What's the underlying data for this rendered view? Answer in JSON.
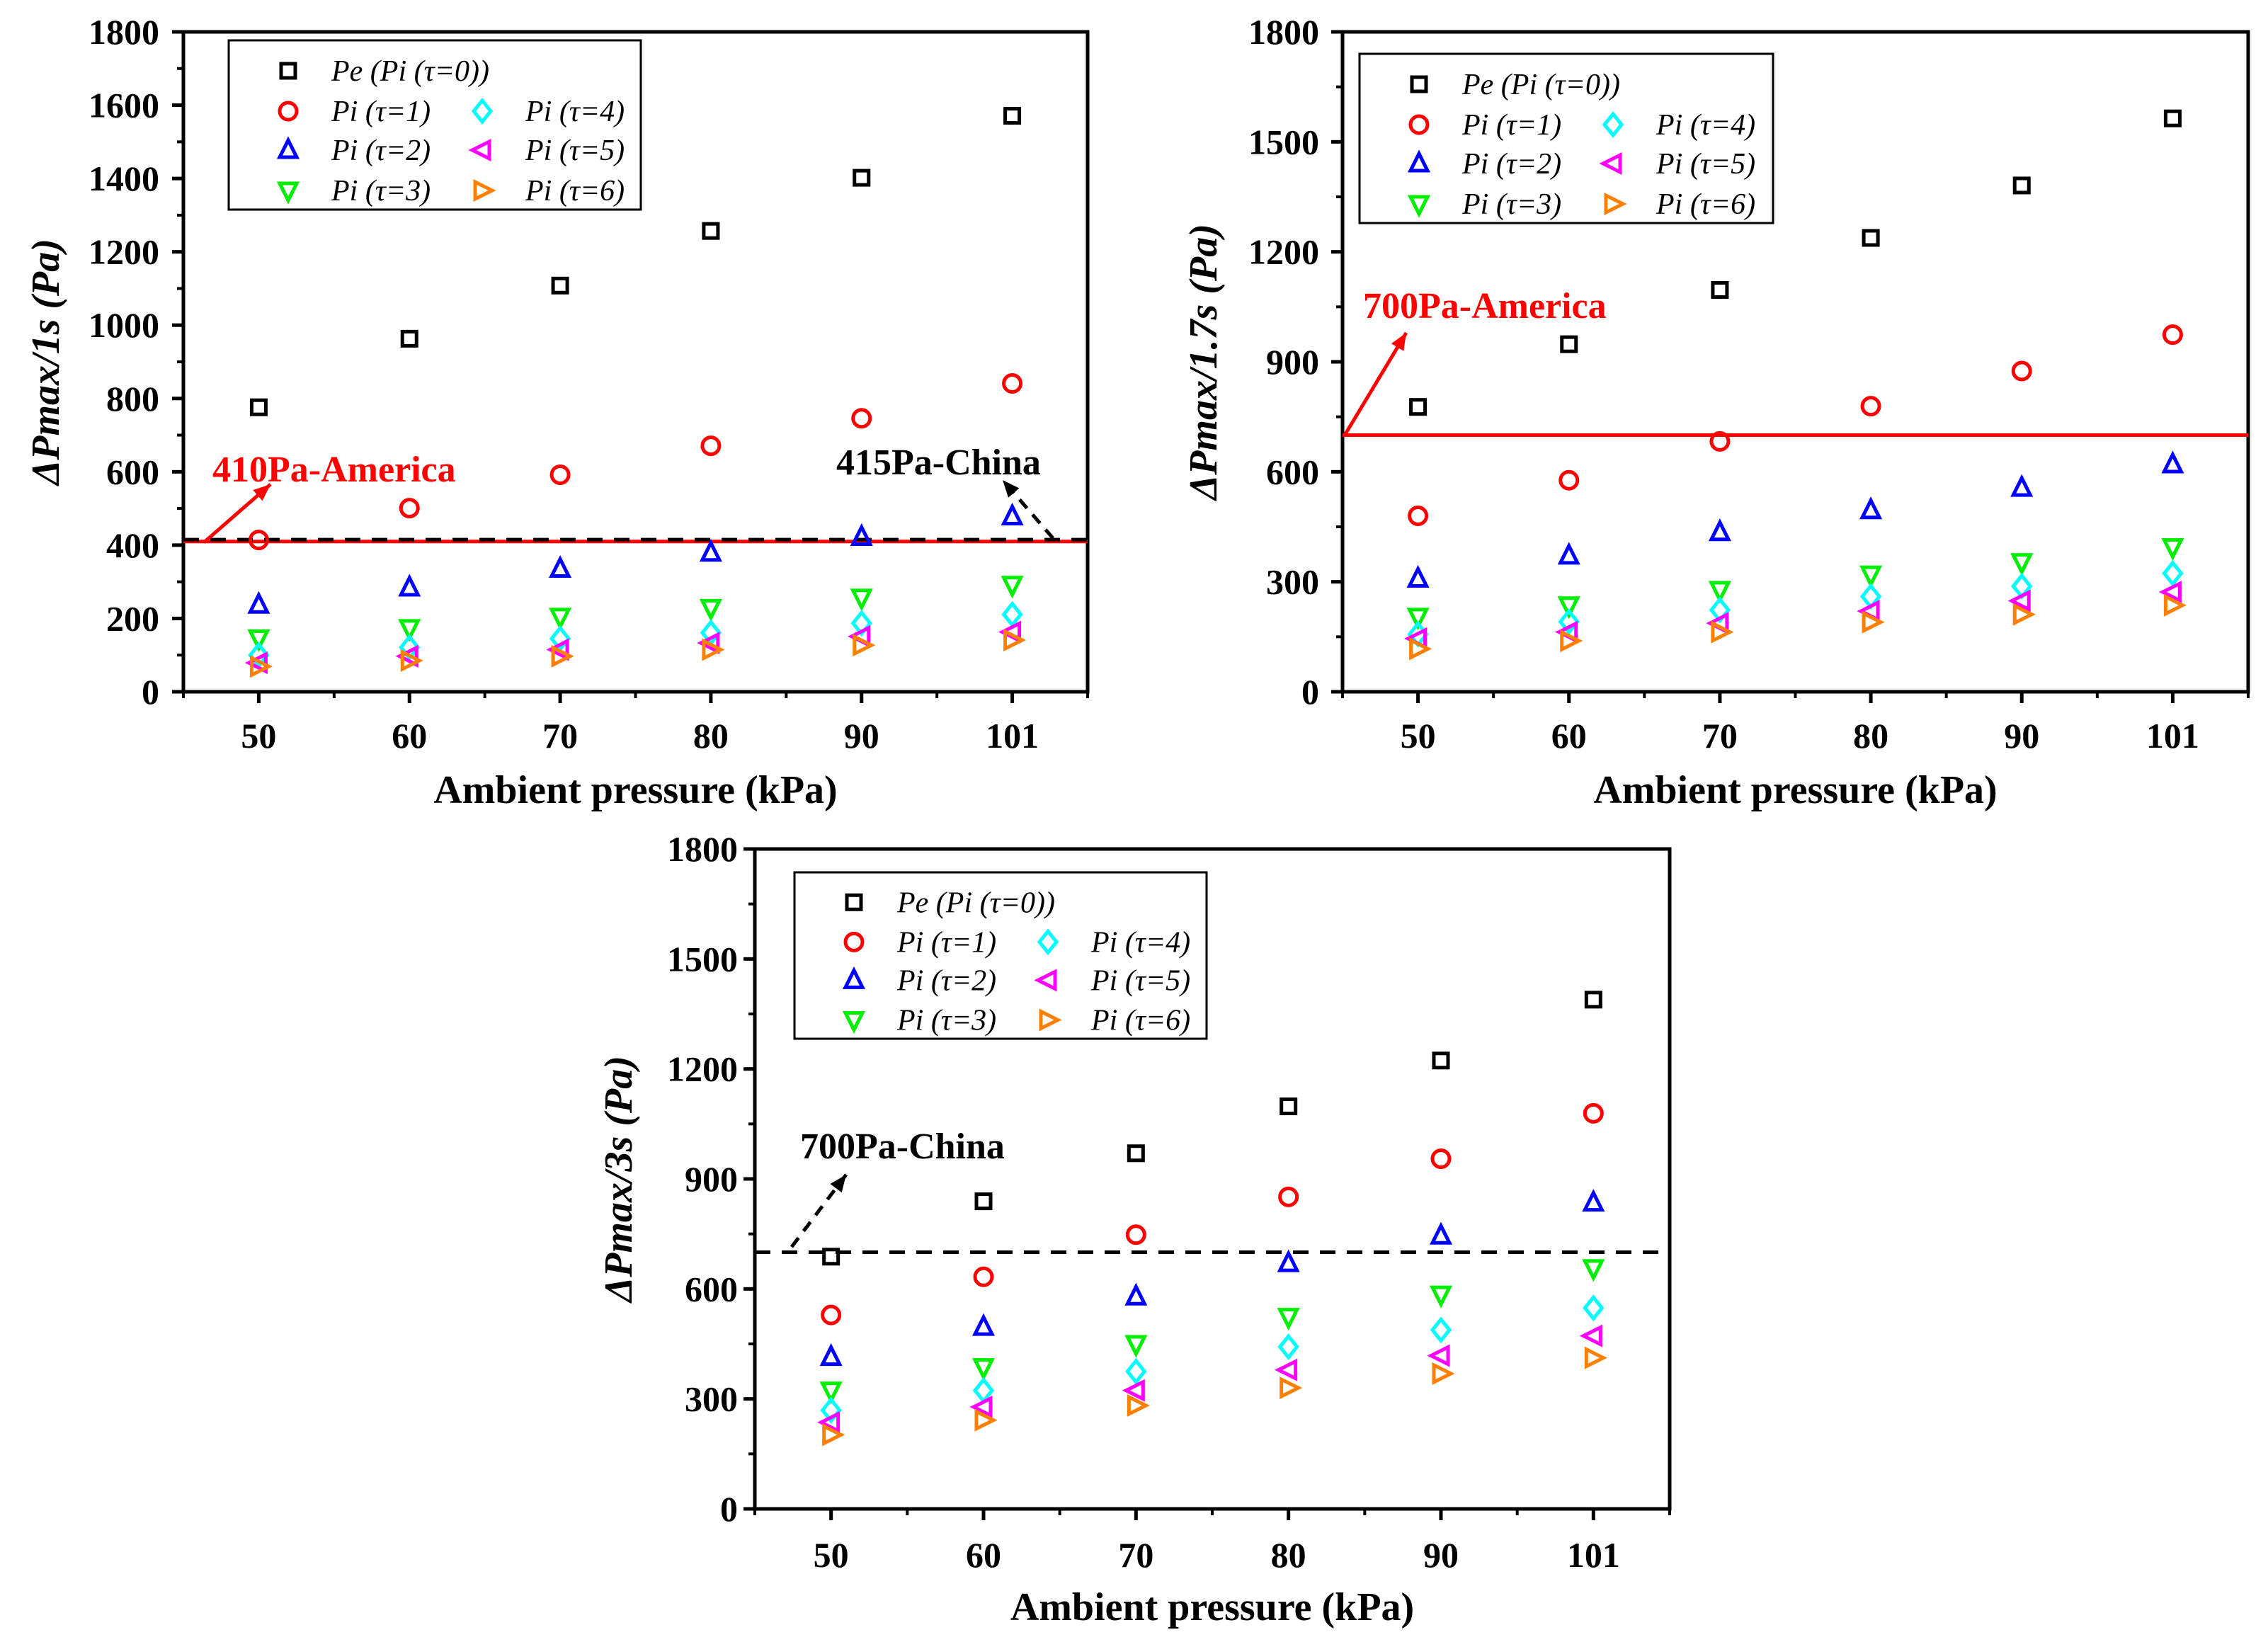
{
  "chart_data": [
    {
      "type": "scatter",
      "title": "",
      "xlabel": "Ambient pressure (kPa)",
      "ylabel": "ΔPmax/1s (Pa)",
      "categories": [
        "50",
        "60",
        "70",
        "80",
        "90",
        "101"
      ],
      "ylim": [
        0,
        1800
      ],
      "yticks": [
        0,
        200,
        400,
        600,
        800,
        1000,
        1200,
        1400,
        1600,
        1800
      ],
      "legend_position": "top-left",
      "series": [
        {
          "name": "Pe (Pi (τ=0))",
          "marker": "square",
          "color": "#000000",
          "values": [
            776,
            963,
            1108,
            1257,
            1402,
            1571
          ]
        },
        {
          "name": "Pi (τ=1)",
          "marker": "circle",
          "color": "#ff0000",
          "values": [
            414,
            501,
            592,
            671,
            746,
            841
          ]
        },
        {
          "name": "Pi (τ=2)",
          "marker": "triangle-up",
          "color": "#0000ff",
          "values": [
            237,
            284,
            335,
            379,
            422,
            478
          ]
        },
        {
          "name": "Pi (τ=3)",
          "marker": "triangle-down",
          "color": "#00ee00",
          "values": [
            146,
            174,
            205,
            229,
            257,
            292
          ]
        },
        {
          "name": "Pi (τ=4)",
          "marker": "diamond",
          "color": "#00ffff",
          "values": [
            100,
            121,
            145,
            161,
            187,
            211
          ]
        },
        {
          "name": "Pi (τ=5)",
          "marker": "triangle-left",
          "color": "#ff00ff",
          "values": [
            79,
            97,
            115,
            133,
            151,
            163
          ]
        },
        {
          "name": "Pi (τ=6)",
          "marker": "triangle-right",
          "color": "#ff8000",
          "values": [
            69,
            85,
            97,
            115,
            127,
            141
          ]
        }
      ],
      "reference_lines": [
        {
          "value": 410,
          "style": "solid",
          "color": "#ff0000",
          "label": "410Pa-America"
        },
        {
          "value": 415,
          "style": "dashed",
          "color": "#000000",
          "label": "415Pa-China"
        }
      ]
    },
    {
      "type": "scatter",
      "title": "",
      "xlabel": "Ambient pressure (kPa)",
      "ylabel": "ΔPmax/1.7s (Pa)",
      "categories": [
        "50",
        "60",
        "70",
        "80",
        "90",
        "101"
      ],
      "ylim": [
        0,
        1800
      ],
      "yticks": [
        0,
        300,
        600,
        900,
        1200,
        1500,
        1800
      ],
      "legend_position": "top-left",
      "series": [
        {
          "name": "Pe (Pi (τ=0))",
          "marker": "square",
          "color": "#000000",
          "values": [
            777,
            948,
            1096,
            1238,
            1381,
            1564
          ]
        },
        {
          "name": "Pi (τ=1)",
          "marker": "circle",
          "color": "#ff0000",
          "values": [
            480,
            577,
            683,
            779,
            875,
            974
          ]
        },
        {
          "name": "Pi (τ=2)",
          "marker": "triangle-up",
          "color": "#0000ff",
          "values": [
            308,
            371,
            435,
            495,
            556,
            620
          ]
        },
        {
          "name": "Pi (τ=3)",
          "marker": "triangle-down",
          "color": "#00ee00",
          "values": [
            205,
            236,
            278,
            320,
            354,
            395
          ]
        },
        {
          "name": "Pi (τ=4)",
          "marker": "diamond",
          "color": "#00ffff",
          "values": [
            157,
            191,
            223,
            260,
            288,
            323
          ]
        },
        {
          "name": "Pi (τ=5)",
          "marker": "triangle-left",
          "color": "#ff00ff",
          "values": [
            145,
            163,
            187,
            220,
            248,
            272
          ]
        },
        {
          "name": "Pi (τ=6)",
          "marker": "triangle-right",
          "color": "#ff8000",
          "values": [
            117,
            139,
            163,
            190,
            211,
            236
          ]
        }
      ],
      "reference_lines": [
        {
          "value": 700,
          "style": "solid",
          "color": "#ff0000",
          "label": "700Pa-America"
        }
      ]
    },
    {
      "type": "scatter",
      "title": "",
      "xlabel": "Ambient pressure (kPa)",
      "ylabel": "ΔPmax/3s (Pa)",
      "categories": [
        "50",
        "60",
        "70",
        "80",
        "90",
        "101"
      ],
      "ylim": [
        0,
        1800
      ],
      "yticks": [
        0,
        300,
        600,
        900,
        1200,
        1500,
        1800
      ],
      "legend_position": "top-left",
      "series": [
        {
          "name": "Pe (Pi (τ=0))",
          "marker": "square",
          "color": "#000000",
          "values": [
            688,
            839,
            970,
            1098,
            1223,
            1389
          ]
        },
        {
          "name": "Pi (τ=1)",
          "marker": "circle",
          "color": "#ff0000",
          "values": [
            529,
            633,
            748,
            851,
            955,
            1079
          ]
        },
        {
          "name": "Pi (τ=2)",
          "marker": "triangle-up",
          "color": "#0000ff",
          "values": [
            414,
            496,
            579,
            670,
            745,
            835
          ]
        },
        {
          "name": "Pi (τ=3)",
          "marker": "triangle-down",
          "color": "#00ee00",
          "values": [
            323,
            387,
            450,
            524,
            585,
            657
          ]
        },
        {
          "name": "Pi (τ=4)",
          "marker": "diamond",
          "color": "#00ffff",
          "values": [
            269,
            323,
            375,
            442,
            488,
            548
          ]
        },
        {
          "name": "Pi (τ=5)",
          "marker": "triangle-left",
          "color": "#ff00ff",
          "values": [
            236,
            278,
            323,
            379,
            418,
            472
          ]
        },
        {
          "name": "Pi (τ=6)",
          "marker": "triangle-right",
          "color": "#ff8000",
          "values": [
            202,
            242,
            282,
            330,
            369,
            412
          ]
        }
      ],
      "reference_lines": [
        {
          "value": 700,
          "style": "dashed",
          "color": "#000000",
          "label": "700Pa-China"
        }
      ]
    }
  ]
}
